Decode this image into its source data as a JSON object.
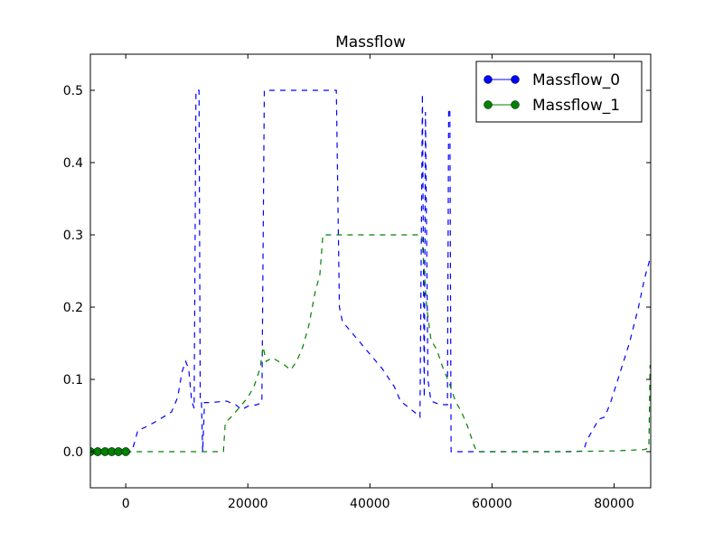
{
  "chart_data": {
    "type": "line",
    "title": "Massflow",
    "xlabel": "",
    "ylabel": "",
    "xlim": [
      -5800,
      86000
    ],
    "ylim": [
      -0.05,
      0.55
    ],
    "xticks": [
      0,
      20000,
      40000,
      60000,
      80000
    ],
    "yticks": [
      0.0,
      0.1,
      0.2,
      0.3,
      0.4,
      0.5
    ],
    "xtick_labels": [
      "0",
      "20000",
      "40000",
      "60000",
      "80000"
    ],
    "ytick_labels": [
      "0.0",
      "0.1",
      "0.2",
      "0.3",
      "0.4",
      "0.5"
    ],
    "grid": false,
    "legend": "top-right",
    "series": [
      {
        "name": "Massflow_0",
        "color": "#0000ff",
        "line_style": "dashed",
        "marker_points": [
          {
            "x": -5800,
            "y": 0.0
          },
          {
            "x": -4600,
            "y": 0.0
          },
          {
            "x": -3400,
            "y": 0.0
          },
          {
            "x": -2300,
            "y": 0.0
          },
          {
            "x": -1200,
            "y": 0.0
          },
          {
            "x": 0,
            "y": 0.0
          }
        ],
        "points": [
          {
            "x": 0,
            "y": 0.0
          },
          {
            "x": 1000,
            "y": 0.0
          },
          {
            "x": 1500,
            "y": 0.015
          },
          {
            "x": 2000,
            "y": 0.03
          },
          {
            "x": 3000,
            "y": 0.033
          },
          {
            "x": 5000,
            "y": 0.042
          },
          {
            "x": 7500,
            "y": 0.055
          },
          {
            "x": 8500,
            "y": 0.075
          },
          {
            "x": 9200,
            "y": 0.11
          },
          {
            "x": 9800,
            "y": 0.125
          },
          {
            "x": 10300,
            "y": 0.115
          },
          {
            "x": 10800,
            "y": 0.07
          },
          {
            "x": 11200,
            "y": 0.06
          },
          {
            "x": 11500,
            "y": 0.5
          },
          {
            "x": 12000,
            "y": 0.5
          },
          {
            "x": 12200,
            "y": 0.068
          },
          {
            "x": 12400,
            "y": 0.068
          },
          {
            "x": 12600,
            "y": 0.0
          },
          {
            "x": 12900,
            "y": 0.068
          },
          {
            "x": 14000,
            "y": 0.068
          },
          {
            "x": 16500,
            "y": 0.07
          },
          {
            "x": 18000,
            "y": 0.065
          },
          {
            "x": 19000,
            "y": 0.058
          },
          {
            "x": 20000,
            "y": 0.063
          },
          {
            "x": 21500,
            "y": 0.065
          },
          {
            "x": 22300,
            "y": 0.068
          },
          {
            "x": 22700,
            "y": 0.5
          },
          {
            "x": 34500,
            "y": 0.5
          },
          {
            "x": 35000,
            "y": 0.2
          },
          {
            "x": 35500,
            "y": 0.18
          },
          {
            "x": 36500,
            "y": 0.17
          },
          {
            "x": 38000,
            "y": 0.155
          },
          {
            "x": 40000,
            "y": 0.135
          },
          {
            "x": 42000,
            "y": 0.115
          },
          {
            "x": 44000,
            "y": 0.09
          },
          {
            "x": 45000,
            "y": 0.07
          },
          {
            "x": 46500,
            "y": 0.06
          },
          {
            "x": 48000,
            "y": 0.05
          },
          {
            "x": 48200,
            "y": 0.048
          },
          {
            "x": 48600,
            "y": 0.495
          },
          {
            "x": 48900,
            "y": 0.075
          },
          {
            "x": 49100,
            "y": 0.47
          },
          {
            "x": 49500,
            "y": 0.1
          },
          {
            "x": 50000,
            "y": 0.07
          },
          {
            "x": 51500,
            "y": 0.065
          },
          {
            "x": 52700,
            "y": 0.065
          },
          {
            "x": 52900,
            "y": 0.475
          },
          {
            "x": 53100,
            "y": 0.47
          },
          {
            "x": 53300,
            "y": 0.0
          },
          {
            "x": 56000,
            "y": 0.0
          },
          {
            "x": 65000,
            "y": 0.0
          },
          {
            "x": 73000,
            "y": 0.0
          },
          {
            "x": 75000,
            "y": 0.001
          },
          {
            "x": 75500,
            "y": 0.015
          },
          {
            "x": 76500,
            "y": 0.03
          },
          {
            "x": 77500,
            "y": 0.045
          },
          {
            "x": 78500,
            "y": 0.048
          },
          {
            "x": 79500,
            "y": 0.07
          },
          {
            "x": 81000,
            "y": 0.11
          },
          {
            "x": 82500,
            "y": 0.15
          },
          {
            "x": 84000,
            "y": 0.2
          },
          {
            "x": 85000,
            "y": 0.24
          },
          {
            "x": 86000,
            "y": 0.27
          }
        ]
      },
      {
        "name": "Massflow_1",
        "color": "#008000",
        "line_style": "dashed",
        "marker_points": [
          {
            "x": -5800,
            "y": 0.0
          },
          {
            "x": -4600,
            "y": 0.0
          },
          {
            "x": -3400,
            "y": 0.0
          },
          {
            "x": -2300,
            "y": 0.0
          },
          {
            "x": -1200,
            "y": 0.0
          },
          {
            "x": 0,
            "y": 0.0
          }
        ],
        "points": [
          {
            "x": 0,
            "y": 0.0
          },
          {
            "x": 16000,
            "y": 0.0
          },
          {
            "x": 16300,
            "y": 0.04
          },
          {
            "x": 17500,
            "y": 0.05
          },
          {
            "x": 19000,
            "y": 0.065
          },
          {
            "x": 20000,
            "y": 0.075
          },
          {
            "x": 21000,
            "y": 0.09
          },
          {
            "x": 22000,
            "y": 0.115
          },
          {
            "x": 22500,
            "y": 0.145
          },
          {
            "x": 23000,
            "y": 0.125
          },
          {
            "x": 24000,
            "y": 0.13
          },
          {
            "x": 25000,
            "y": 0.125
          },
          {
            "x": 26000,
            "y": 0.12
          },
          {
            "x": 27000,
            "y": 0.113
          },
          {
            "x": 28000,
            "y": 0.125
          },
          {
            "x": 29000,
            "y": 0.145
          },
          {
            "x": 30000,
            "y": 0.175
          },
          {
            "x": 31000,
            "y": 0.22
          },
          {
            "x": 31800,
            "y": 0.245
          },
          {
            "x": 32300,
            "y": 0.3
          },
          {
            "x": 48500,
            "y": 0.3
          },
          {
            "x": 49300,
            "y": 0.2
          },
          {
            "x": 50000,
            "y": 0.155
          },
          {
            "x": 51000,
            "y": 0.14
          },
          {
            "x": 52000,
            "y": 0.115
          },
          {
            "x": 53000,
            "y": 0.095
          },
          {
            "x": 54000,
            "y": 0.07
          },
          {
            "x": 55000,
            "y": 0.055
          },
          {
            "x": 56000,
            "y": 0.035
          },
          {
            "x": 57000,
            "y": 0.01
          },
          {
            "x": 57500,
            "y": 0.0
          },
          {
            "x": 70000,
            "y": 0.0
          },
          {
            "x": 80000,
            "y": 0.001
          },
          {
            "x": 85000,
            "y": 0.003
          },
          {
            "x": 85700,
            "y": 0.005
          },
          {
            "x": 85900,
            "y": 0.12
          }
        ]
      }
    ]
  }
}
